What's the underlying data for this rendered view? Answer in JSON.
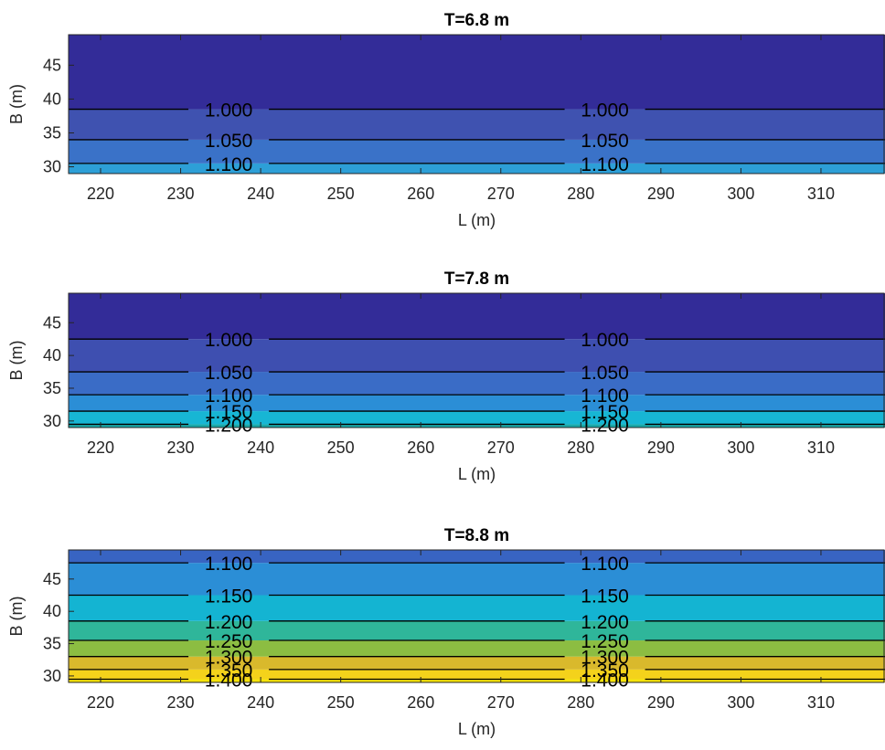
{
  "chart_data": [
    {
      "type": "contour",
      "title": "T=6.8 m",
      "xlabel": "L (m)",
      "ylabel": "B (m)",
      "xlim": [
        216,
        318
      ],
      "ylim": [
        29,
        49.5
      ],
      "xticks": [
        220,
        230,
        240,
        250,
        260,
        270,
        280,
        290,
        300,
        310
      ],
      "yticks": [
        30,
        35,
        40,
        45
      ],
      "grid": false,
      "legend": "none",
      "bands": [
        {
          "from": 29,
          "to": 30.5,
          "color": "#2d9fd7"
        },
        {
          "from": 30.5,
          "to": 34,
          "color": "#3a72c8"
        },
        {
          "from": 34,
          "to": 38.5,
          "color": "#3f52b0"
        },
        {
          "from": 38.5,
          "to": 49.5,
          "color": "#332c98"
        }
      ],
      "contours": [
        {
          "level": "1.000",
          "y": 38.5
        },
        {
          "level": "1.050",
          "y": 34
        },
        {
          "level": "1.100",
          "y": 30.5
        }
      ],
      "label_x": [
        236,
        283
      ]
    },
    {
      "type": "contour",
      "title": "T=7.8 m",
      "xlabel": "L (m)",
      "ylabel": "B (m)",
      "xlim": [
        216,
        318
      ],
      "ylim": [
        29,
        49.5
      ],
      "xticks": [
        220,
        230,
        240,
        250,
        260,
        270,
        280,
        290,
        300,
        310
      ],
      "yticks": [
        30,
        35,
        40,
        45
      ],
      "grid": false,
      "legend": "none",
      "bands": [
        {
          "from": 29,
          "to": 29.5,
          "color": "#1aa8a8"
        },
        {
          "from": 29.5,
          "to": 31.5,
          "color": "#17b6d4"
        },
        {
          "from": 31.5,
          "to": 34,
          "color": "#2b8ed6"
        },
        {
          "from": 34,
          "to": 37.5,
          "color": "#3a6cc6"
        },
        {
          "from": 37.5,
          "to": 42.5,
          "color": "#3e4fb0"
        },
        {
          "from": 42.5,
          "to": 49.5,
          "color": "#332c98"
        }
      ],
      "contours": [
        {
          "level": "1.000",
          "y": 42.5
        },
        {
          "level": "1.050",
          "y": 37.5
        },
        {
          "level": "1.100",
          "y": 34
        },
        {
          "level": "1.150",
          "y": 31.5
        },
        {
          "level": "1.200",
          "y": 29.5
        }
      ],
      "label_x": [
        236,
        283
      ]
    },
    {
      "type": "contour",
      "title": "T=8.8 m",
      "xlabel": "L (m)",
      "ylabel": "B (m)",
      "xlim": [
        216,
        318
      ],
      "ylim": [
        29,
        49.5
      ],
      "xticks": [
        220,
        230,
        240,
        250,
        260,
        270,
        280,
        290,
        300,
        310
      ],
      "yticks": [
        30,
        35,
        40,
        45
      ],
      "grid": false,
      "legend": "none",
      "bands": [
        {
          "from": 29,
          "to": 29.5,
          "color": "#f5e30a"
        },
        {
          "from": 29.5,
          "to": 31,
          "color": "#f4d21b"
        },
        {
          "from": 31,
          "to": 33,
          "color": "#d9b92c"
        },
        {
          "from": 33,
          "to": 35.5,
          "color": "#8cbd42"
        },
        {
          "from": 35.5,
          "to": 38.5,
          "color": "#2fb69a"
        },
        {
          "from": 38.5,
          "to": 42.5,
          "color": "#14b4d2"
        },
        {
          "from": 42.5,
          "to": 47.5,
          "color": "#2b8ed6"
        },
        {
          "from": 47.5,
          "to": 49.5,
          "color": "#3864c2"
        }
      ],
      "contours": [
        {
          "level": "1.100",
          "y": 47.5
        },
        {
          "level": "1.150",
          "y": 42.5
        },
        {
          "level": "1.200",
          "y": 38.5
        },
        {
          "level": "1.250",
          "y": 35.5
        },
        {
          "level": "1.300",
          "y": 33
        },
        {
          "level": "1.350",
          "y": 31
        },
        {
          "level": "1.400",
          "y": 29.5
        }
      ],
      "label_x": [
        236,
        283
      ]
    }
  ]
}
